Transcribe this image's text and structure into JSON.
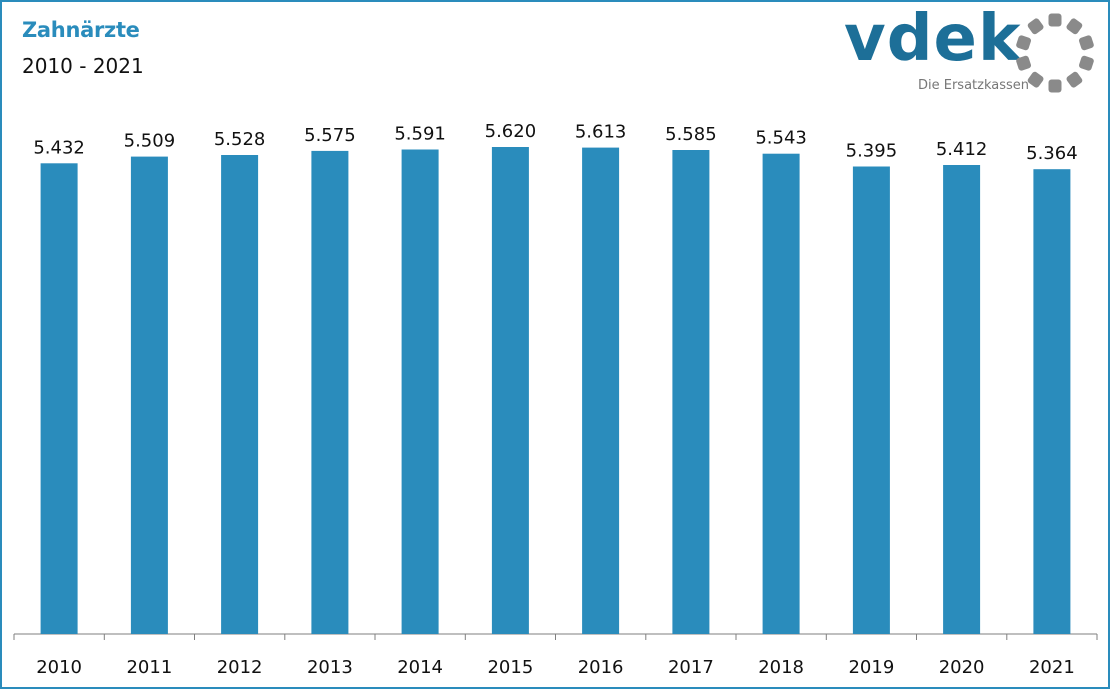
{
  "header": {
    "title": "Zahnärzte",
    "subtitle": "2010 - 2021"
  },
  "logo": {
    "word": "vdek",
    "tagline": "Die Ersatzkassen"
  },
  "colors": {
    "bar": "#2a8cbc",
    "border": "#2a8cbc",
    "logo_text": "#1d6f98",
    "logo_ring": "#8a8a8a"
  },
  "chart_data": {
    "type": "bar",
    "categories": [
      "2010",
      "2011",
      "2012",
      "2013",
      "2014",
      "2015",
      "2016",
      "2017",
      "2018",
      "2019",
      "2020",
      "2021"
    ],
    "values": [
      5432,
      5509,
      5528,
      5575,
      5591,
      5620,
      5613,
      5585,
      5543,
      5395,
      5412,
      5364
    ],
    "value_labels": [
      "5.432",
      "5.509",
      "5.528",
      "5.575",
      "5.591",
      "5.620",
      "5.613",
      "5.585",
      "5.543",
      "5.395",
      "5.412",
      "5.364"
    ],
    "title": "Zahnärzte",
    "xlabel": "",
    "ylabel": "",
    "ylim": [
      0,
      5620
    ],
    "grid": false,
    "legend": "none"
  }
}
